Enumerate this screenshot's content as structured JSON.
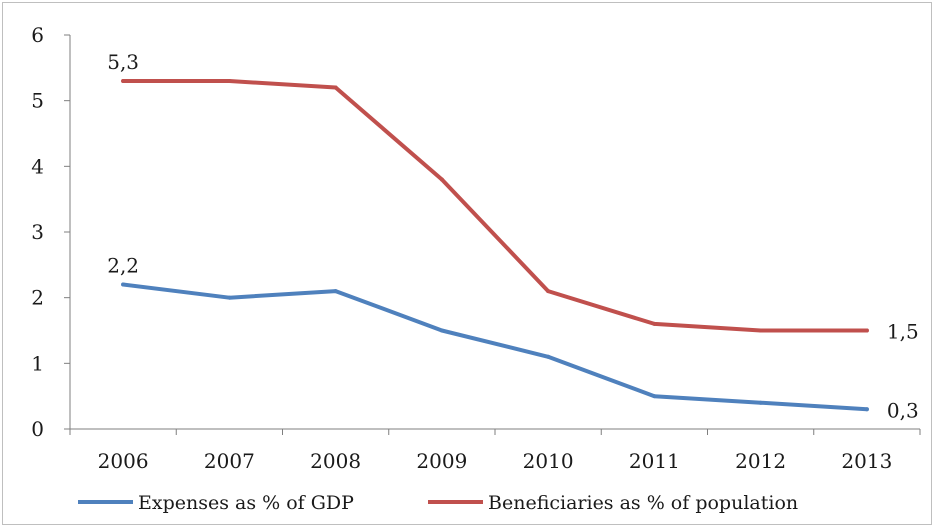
{
  "chart_data": {
    "type": "line",
    "title": "",
    "xlabel": "",
    "ylabel": "",
    "categories": [
      "2006",
      "2007",
      "2008",
      "2009",
      "2010",
      "2011",
      "2012",
      "2013"
    ],
    "ylim": [
      0,
      6
    ],
    "yticks": [
      0,
      1,
      2,
      3,
      4,
      5,
      6
    ],
    "grid": false,
    "legend_position": "bottom",
    "series": [
      {
        "name": "Expenses as % of GDP",
        "color": "#4f81bd",
        "values": [
          2.2,
          2.0,
          2.1,
          1.5,
          1.1,
          0.5,
          0.4,
          0.3
        ]
      },
      {
        "name": "Beneficiaries as % of population",
        "color": "#c0504d",
        "values": [
          5.3,
          5.3,
          5.2,
          3.8,
          2.1,
          1.6,
          1.5,
          1.5
        ]
      }
    ],
    "annotations": [
      {
        "series": 0,
        "index": 0,
        "text": "2,2"
      },
      {
        "series": 0,
        "index": 7,
        "text": "0,3"
      },
      {
        "series": 1,
        "index": 0,
        "text": "5,3"
      },
      {
        "series": 1,
        "index": 7,
        "text": "1,5"
      }
    ]
  }
}
